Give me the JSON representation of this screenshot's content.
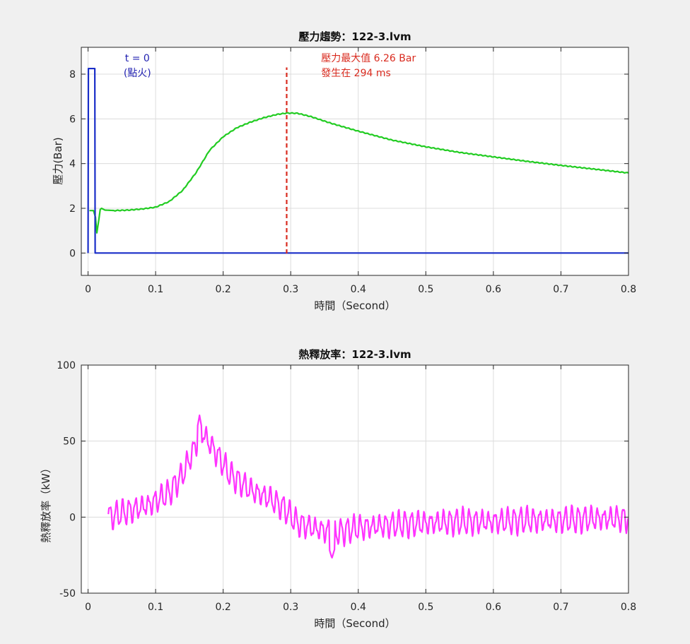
{
  "figure": {
    "background": "#f0f0f0"
  },
  "chart_data": [
    {
      "type": "line",
      "title": "壓力趨勢：122-3.lvm",
      "xlabel": "時間（Second）",
      "ylabel": "壓力(Bar)",
      "xlim": [
        -0.01,
        0.8
      ],
      "ylim": [
        -1,
        9.2
      ],
      "xticks": [
        "0",
        "0.1",
        "0.2",
        "0.3",
        "0.4",
        "0.5",
        "0.6",
        "0.7",
        "0.8"
      ],
      "yticks": [
        "0",
        "2",
        "4",
        "6",
        "8"
      ],
      "grid": true,
      "series": [
        {
          "color": "#22cc22",
          "x": [
            0.002,
            0.008,
            0.011,
            0.013,
            0.016,
            0.018,
            0.02,
            0.025,
            0.04,
            0.06,
            0.08,
            0.1,
            0.12,
            0.14,
            0.16,
            0.18,
            0.2,
            0.22,
            0.24,
            0.26,
            0.28,
            0.294,
            0.31,
            0.33,
            0.36,
            0.4,
            0.45,
            0.5,
            0.55,
            0.6,
            0.65,
            0.7,
            0.75,
            0.8
          ],
          "y": [
            1.9,
            1.9,
            1.6,
            0.9,
            1.5,
            1.95,
            2.0,
            1.92,
            1.9,
            1.92,
            1.97,
            2.05,
            2.3,
            2.8,
            3.6,
            4.6,
            5.2,
            5.6,
            5.85,
            6.05,
            6.2,
            6.26,
            6.25,
            6.1,
            5.8,
            5.45,
            5.05,
            4.75,
            4.5,
            4.3,
            4.1,
            3.92,
            3.75,
            3.58
          ]
        },
        {
          "color": "#1a2ec8",
          "x": [
            0,
            0.0005,
            0.0015,
            0.01,
            0.0105,
            0.8
          ],
          "y": [
            0,
            8.25,
            8.25,
            8.25,
            0,
            0
          ]
        }
      ],
      "reference_line": {
        "x": 0.294,
        "color": "#d92b1f",
        "style": "dashed",
        "y_range": [
          -0.02,
          8.3
        ]
      },
      "annotations": [
        {
          "lines": [
            "t = 0",
            "(點火)"
          ],
          "color": "#1f1fb0",
          "at": [
            0.073,
            8.6
          ]
        },
        {
          "lines": [
            "壓力最大值 6.26 Bar",
            "發生在 294 ms"
          ],
          "color": "#d92b1f",
          "at": [
            0.345,
            8.6
          ]
        }
      ]
    },
    {
      "type": "line",
      "title": "熱釋放率：122-3.lvm",
      "xlabel": "時間（Second）",
      "ylabel": "熱釋放率（kW）",
      "xlim": [
        -0.01,
        0.8
      ],
      "ylim": [
        -50,
        100
      ],
      "xticks": [
        "0",
        "0.1",
        "0.2",
        "0.3",
        "0.4",
        "0.5",
        "0.6",
        "0.7",
        "0.8"
      ],
      "yticks": [
        "-50",
        "0",
        "50",
        "100"
      ],
      "grid": true,
      "series": [
        {
          "color": "#ff33ff",
          "x_start": 0.03,
          "x_end": 0.8,
          "trend_x": [
            0.03,
            0.06,
            0.09,
            0.12,
            0.14,
            0.16,
            0.17,
            0.19,
            0.21,
            0.24,
            0.27,
            0.29,
            0.31,
            0.34,
            0.37,
            0.4,
            0.45,
            0.5,
            0.55,
            0.6,
            0.65,
            0.7,
            0.75,
            0.8
          ],
          "trend_y": [
            0,
            4,
            8,
            16,
            28,
            48,
            55,
            42,
            28,
            18,
            12,
            6,
            -4,
            -8,
            -10,
            -7,
            -5,
            -4,
            -3,
            -3,
            -2,
            -2,
            -1,
            -1
          ],
          "oscillation_amplitude": 7,
          "oscillation_period": 0.0095,
          "min_point": {
            "x": 0.361,
            "y": -27
          },
          "max_point": {
            "x": 0.165,
            "y": 67
          }
        }
      ]
    }
  ]
}
